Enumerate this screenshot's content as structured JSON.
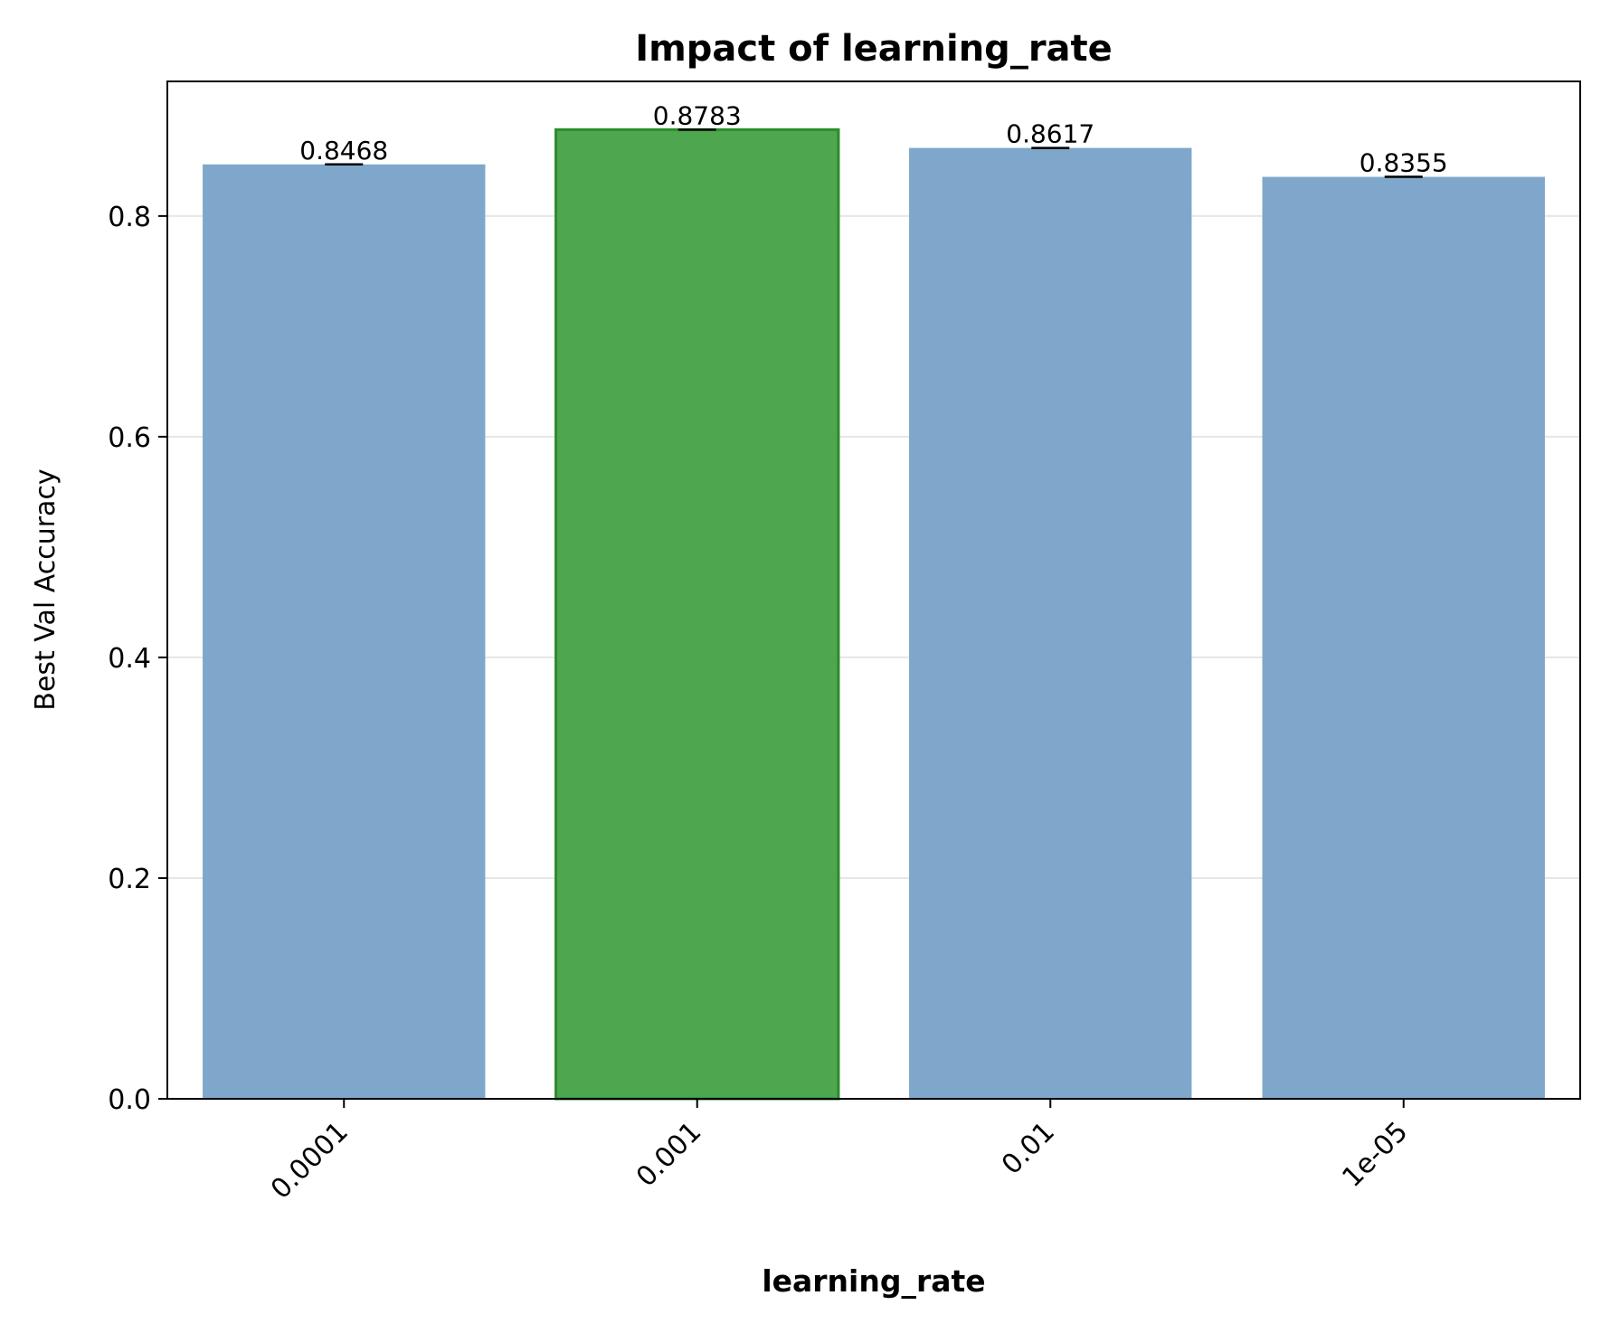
{
  "chart_data": {
    "type": "bar",
    "title": "Impact of learning_rate",
    "xlabel": "learning_rate",
    "ylabel": "Best Val Accuracy",
    "categories": [
      "0.0001",
      "0.001",
      "0.01",
      "1e-05"
    ],
    "values": [
      0.8468,
      0.8783,
      0.8617,
      0.8355
    ],
    "value_labels": [
      "0.8468",
      "0.8783",
      "0.8617",
      "0.8355"
    ],
    "best_category": "0.001",
    "ylim": [
      0,
      0.922
    ],
    "yticks": [
      0.0,
      0.2,
      0.4,
      0.6,
      0.8
    ],
    "ytick_labels": [
      "0.0",
      "0.2",
      "0.4",
      "0.6",
      "0.8"
    ],
    "grid": "horizontal",
    "colors": {
      "bar": "#7fa7cb",
      "best_bar": "#4ea64e",
      "best_bar_edge": "#2e8b2e",
      "grid": "#e6e6e6",
      "axis": "#000000"
    }
  }
}
